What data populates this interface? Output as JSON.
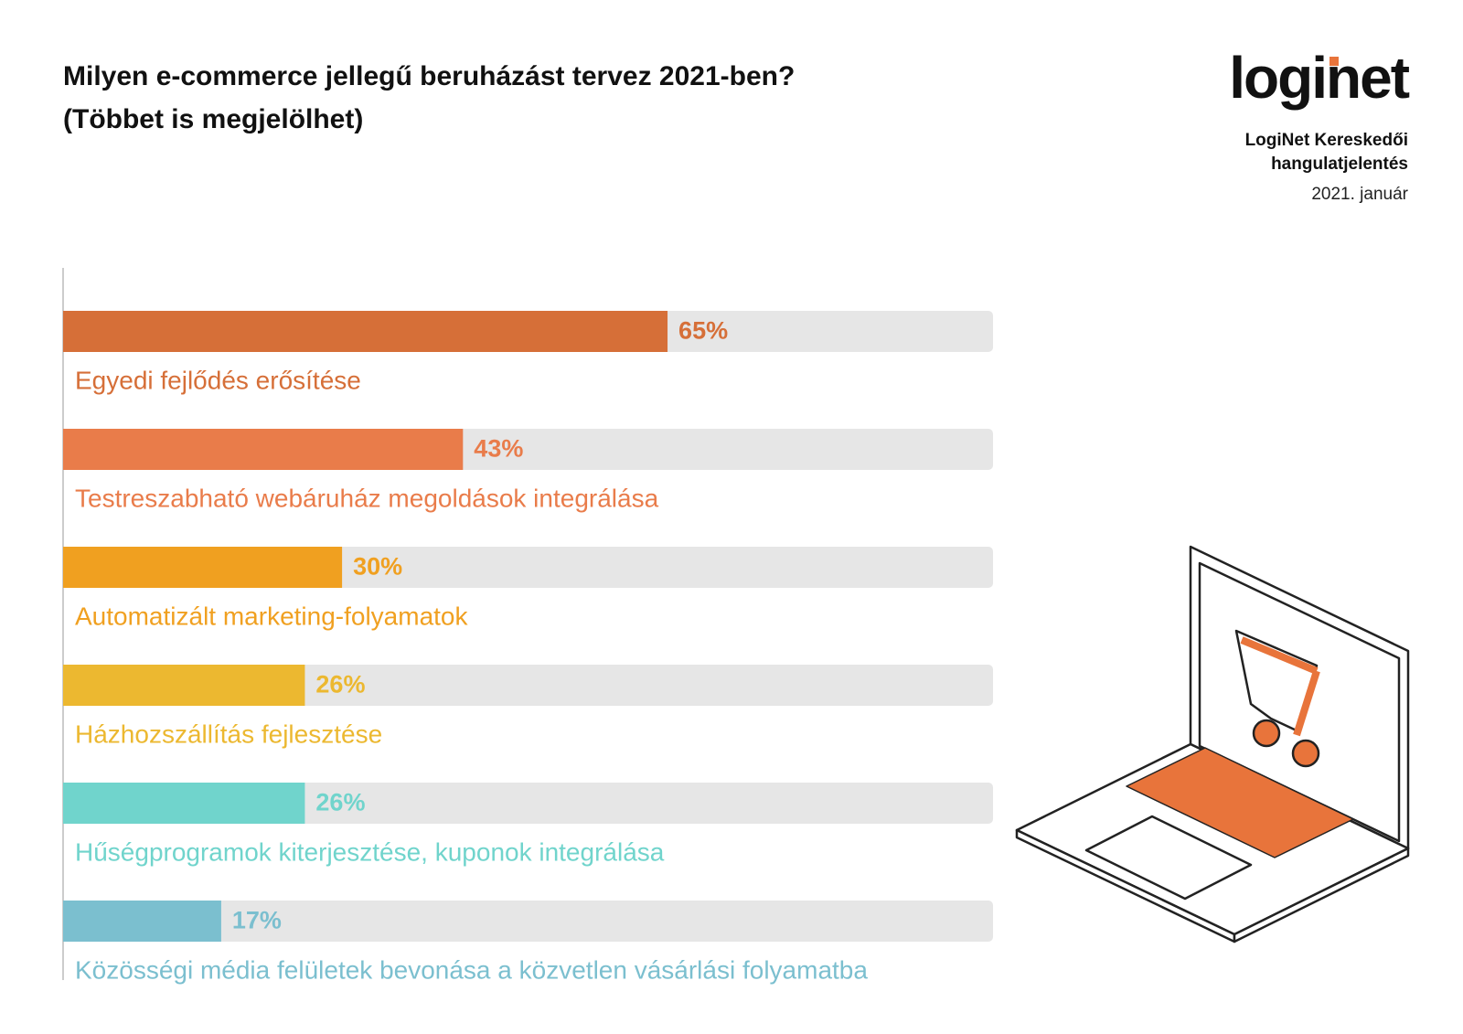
{
  "chart_data": {
    "type": "bar",
    "title": "Milyen e-commerce jellegű beruházást tervez 2021-ben?",
    "subtitle": "(Többet is megjelölhet)",
    "logo": "loginet",
    "report_lines": [
      "LogiNet Kereskedői",
      "hangulatjelentés"
    ],
    "date": "2021. január",
    "categories": [
      "Egyedi fejlődés erősítése",
      "Testreszabható webáruház megoldások integrálása",
      "Automatizált marketing-folyamatok",
      "Házhozszállítás fejlesztése",
      "Hűségprogramok kiterjesztése, kuponok integrálása",
      "Közösségi média felületek bevonása a közvetlen vásárlási folyamatba"
    ],
    "values": [
      65,
      43,
      30,
      26,
      26,
      17
    ],
    "value_labels": [
      "65%",
      "43%",
      "30%",
      "26%",
      "26%",
      "17%"
    ],
    "colors": [
      "#d66f38",
      "#e97c4a",
      "#f0a020",
      "#ecb830",
      "#70d4cc",
      "#7bbfcf"
    ],
    "track_color": "#e6e6e6",
    "xlim": [
      0,
      100
    ]
  }
}
